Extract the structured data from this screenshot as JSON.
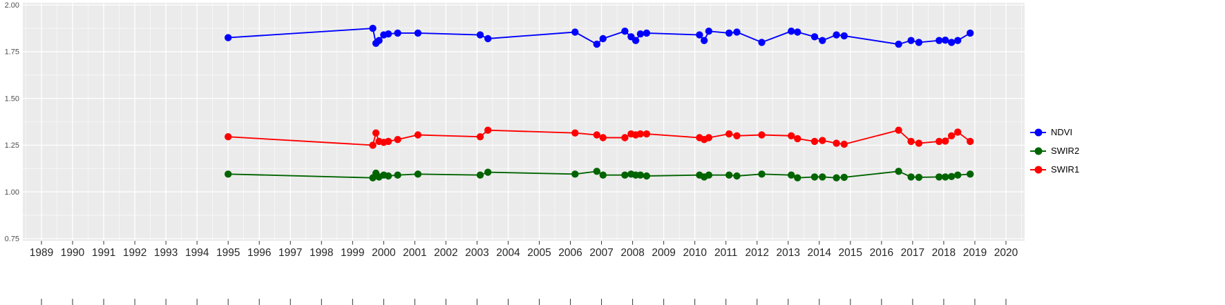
{
  "figure": {
    "title": ""
  },
  "chart_data": {
    "type": "scatter",
    "title": "",
    "xlabel": "",
    "ylabel": "",
    "xlim": [
      1988.4,
      2020.6
    ],
    "ylim": [
      0.738,
      2.012
    ],
    "x_ticks": [
      1989,
      1990,
      1991,
      1992,
      1993,
      1994,
      1995,
      1996,
      1997,
      1998,
      1999,
      2000,
      2001,
      2002,
      2003,
      2004,
      2005,
      2006,
      2007,
      2008,
      2009,
      2010,
      2011,
      2012,
      2013,
      2014,
      2015,
      2016,
      2017,
      2018,
      2019,
      2020
    ],
    "y_ticks": [
      0.75,
      1.0,
      1.25,
      1.5,
      1.75,
      2.0
    ],
    "y_tick_labels": [
      "0.75",
      "1.00",
      "1.25",
      "1.50",
      "1.75",
      "2.00"
    ],
    "grid": true,
    "panel_bg": "#EBEBEB",
    "grid_major_color": "#FFFFFF",
    "grid_minor_color": "#FFFFFF",
    "axis_text_color_y": "#4D4D4D",
    "axis_text_color_x": "#262626",
    "tick_color": "#333333",
    "x": [
      1995.0,
      1999.65,
      1999.75,
      1999.85,
      2000.0,
      2000.15,
      2000.45,
      2001.1,
      2003.1,
      2003.35,
      2006.15,
      2006.85,
      2007.05,
      2007.75,
      2007.95,
      2008.1,
      2008.25,
      2008.45,
      2010.15,
      2010.3,
      2010.45,
      2011.1,
      2011.35,
      2012.15,
      2013.1,
      2013.3,
      2013.85,
      2014.1,
      2014.55,
      2014.8,
      2016.55,
      2016.95,
      2017.2,
      2017.85,
      2018.05,
      2018.25,
      2018.45,
      2018.85
    ],
    "series": [
      {
        "name": "NDVI",
        "color": "#0000FF",
        "values": [
          1.825,
          1.875,
          1.795,
          1.81,
          1.84,
          1.845,
          1.85,
          1.85,
          1.84,
          1.82,
          1.855,
          1.79,
          1.82,
          1.86,
          1.83,
          1.81,
          1.845,
          1.85,
          1.84,
          1.81,
          1.86,
          1.85,
          1.855,
          1.8,
          1.86,
          1.855,
          1.83,
          1.81,
          1.84,
          1.835,
          1.79,
          1.81,
          1.8,
          1.81,
          1.812,
          1.8,
          1.81,
          1.85
        ]
      },
      {
        "name": "SWIR2",
        "color": "#006400",
        "values": [
          1.095,
          1.075,
          1.1,
          1.08,
          1.09,
          1.085,
          1.09,
          1.095,
          1.09,
          1.105,
          1.095,
          1.11,
          1.09,
          1.09,
          1.095,
          1.09,
          1.09,
          1.085,
          1.09,
          1.08,
          1.09,
          1.09,
          1.085,
          1.095,
          1.09,
          1.075,
          1.08,
          1.08,
          1.075,
          1.078,
          1.11,
          1.08,
          1.078,
          1.08,
          1.08,
          1.082,
          1.09,
          1.095
        ]
      },
      {
        "name": "SWIR1",
        "color": "#FF0000",
        "values": [
          1.295,
          1.25,
          1.315,
          1.27,
          1.265,
          1.27,
          1.28,
          1.305,
          1.295,
          1.33,
          1.315,
          1.305,
          1.29,
          1.29,
          1.31,
          1.305,
          1.31,
          1.31,
          1.29,
          1.28,
          1.29,
          1.31,
          1.3,
          1.305,
          1.3,
          1.285,
          1.27,
          1.275,
          1.26,
          1.255,
          1.33,
          1.27,
          1.26,
          1.27,
          1.272,
          1.3,
          1.32,
          1.27
        ]
      }
    ],
    "legend": {
      "position": "right",
      "entries": [
        {
          "label": "NDVI",
          "color": "#0000FF"
        },
        {
          "label": "SWIR2",
          "color": "#006400"
        },
        {
          "label": "SWIR1",
          "color": "#FF0000"
        }
      ]
    }
  }
}
